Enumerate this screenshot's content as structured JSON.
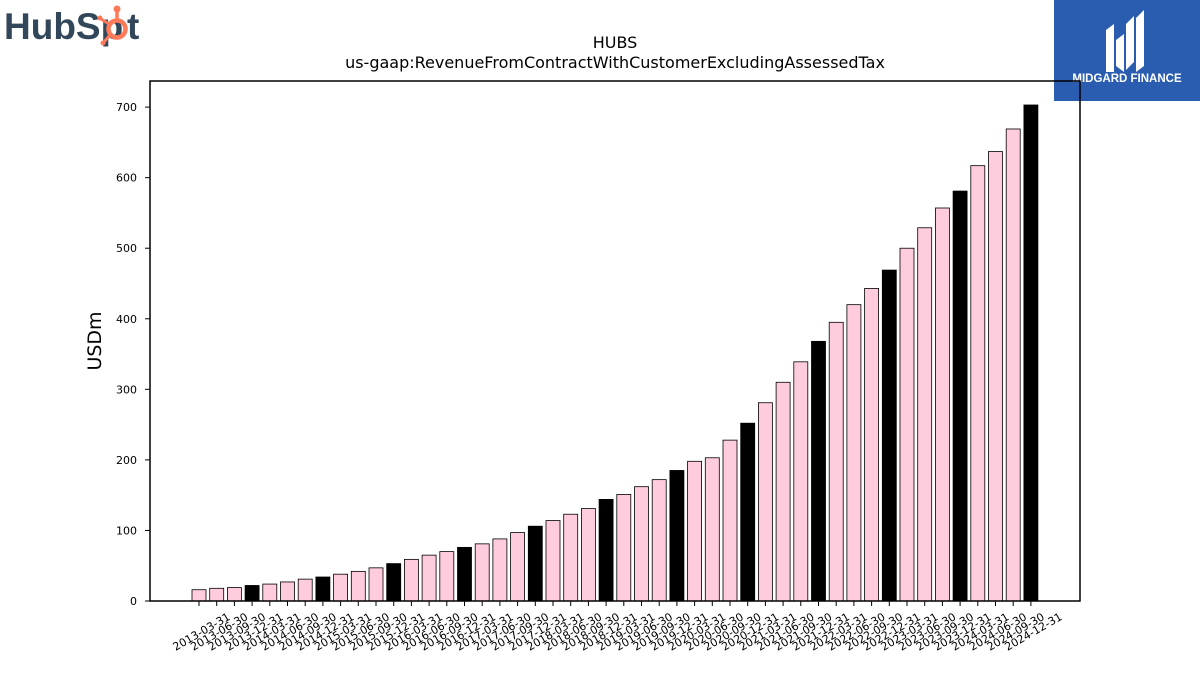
{
  "logos": {
    "left": {
      "text": "HubSpot",
      "color": "#33475b",
      "accent": "#ff7a59"
    },
    "right": {
      "text": "MIDGARD FINANCE",
      "bg": "#2a5db0"
    }
  },
  "chart_data": {
    "type": "bar",
    "title": "HUBS",
    "subtitle": "us-gaap:RevenueFromContractWithCustomerExcludingAssessedTax",
    "xlabel": "",
    "ylabel": "USDm",
    "ylim": [
      0,
      737
    ],
    "yticks": [
      0,
      100,
      200,
      300,
      400,
      500,
      600,
      700
    ],
    "grid": false,
    "colors": {
      "quarter": "#ffccdd",
      "year_end": "#000000",
      "edge": "#000000"
    },
    "categories": [
      "2013-03-31",
      "2013-06-30",
      "2013-09-30",
      "2013-12-31",
      "2014-03-31",
      "2014-06-30",
      "2014-09-30",
      "2014-12-31",
      "2015-03-31",
      "2015-06-30",
      "2015-09-30",
      "2015-12-31",
      "2016-03-31",
      "2016-06-30",
      "2016-09-30",
      "2016-12-31",
      "2017-03-31",
      "2017-06-30",
      "2017-09-30",
      "2017-12-31",
      "2018-03-31",
      "2018-06-30",
      "2018-09-30",
      "2018-12-31",
      "2019-03-31",
      "2019-06-30",
      "2019-09-30",
      "2019-12-31",
      "2020-03-31",
      "2020-06-30",
      "2020-09-30",
      "2020-12-31",
      "2021-03-31",
      "2021-06-30",
      "2021-09-30",
      "2021-12-31",
      "2022-03-31",
      "2022-06-30",
      "2022-09-30",
      "2022-12-31",
      "2023-03-31",
      "2023-06-30",
      "2023-09-30",
      "2023-12-31",
      "2024-03-31",
      "2024-06-30",
      "2024-09-30",
      "2024-12-31"
    ],
    "values": [
      16,
      18,
      19,
      22,
      24,
      27,
      31,
      34,
      38,
      42,
      47,
      53,
      59,
      65,
      70,
      76,
      81,
      88,
      97,
      106,
      114,
      123,
      131,
      144,
      151,
      162,
      172,
      185,
      198,
      203,
      228,
      252,
      281,
      310,
      339,
      368,
      395,
      420,
      443,
      469,
      500,
      529,
      557,
      581,
      617,
      637,
      669,
      703
    ],
    "year_end_flags": [
      false,
      false,
      false,
      true,
      false,
      false,
      false,
      true,
      false,
      false,
      false,
      true,
      false,
      false,
      false,
      true,
      false,
      false,
      false,
      true,
      false,
      false,
      false,
      true,
      false,
      false,
      false,
      true,
      false,
      false,
      false,
      true,
      false,
      false,
      false,
      true,
      false,
      false,
      false,
      true,
      false,
      false,
      false,
      true,
      false,
      false,
      false,
      true
    ]
  }
}
